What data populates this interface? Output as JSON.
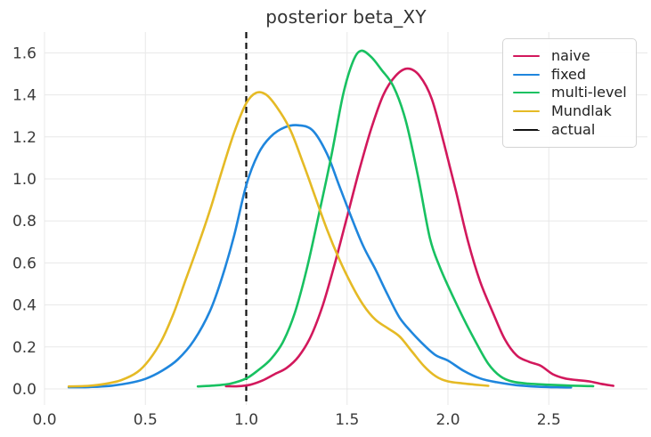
{
  "title": "posterior beta_XY",
  "legend": {
    "position": "upper right",
    "entries": [
      {
        "label": "naive",
        "color": "#d2185c",
        "dash": false
      },
      {
        "label": "fixed",
        "color": "#1f86dd",
        "dash": false
      },
      {
        "label": "multi-level",
        "color": "#18c161",
        "dash": false
      },
      {
        "label": "Mundlak",
        "color": "#e5ba25",
        "dash": false
      },
      {
        "label": "actual",
        "color": "#111111",
        "dash": true
      }
    ]
  },
  "colors": {
    "grid": "#e8e8e8",
    "tick_text": "#3a3a3a",
    "title_text": "#333333"
  },
  "chart_data": {
    "type": "line",
    "title": "posterior beta_XY",
    "xlabel": "",
    "ylabel": "",
    "grid": true,
    "legend_position": "upper right",
    "xlim": [
      -0.01,
      2.99
    ],
    "ylim": [
      -0.077,
      1.7
    ],
    "x_ticks": [
      0.0,
      0.5,
      1.0,
      1.5,
      2.0,
      2.5
    ],
    "x_tick_labels": [
      "0.0",
      "0.5",
      "1.0",
      "1.5",
      "2.0",
      "2.5"
    ],
    "y_ticks": [
      0.0,
      0.2,
      0.4,
      0.6,
      0.8,
      1.0,
      1.2,
      1.4,
      1.6
    ],
    "y_tick_labels": [
      "0.0",
      "0.2",
      "0.4",
      "0.6",
      "0.8",
      "1.0",
      "1.2",
      "1.4",
      "1.6"
    ],
    "vline": {
      "x": 1.0,
      "label": "actual",
      "style": "dashed",
      "color": "#111111"
    },
    "series": [
      {
        "name": "naive",
        "color": "#d2185c",
        "peak": {
          "x": 1.8,
          "y": 1.52
        },
        "points": [
          [
            0.9,
            0.013
          ],
          [
            0.96,
            0.013
          ],
          [
            1.02,
            0.02
          ],
          [
            1.08,
            0.04
          ],
          [
            1.14,
            0.07
          ],
          [
            1.2,
            0.1
          ],
          [
            1.26,
            0.155
          ],
          [
            1.32,
            0.25
          ],
          [
            1.38,
            0.4
          ],
          [
            1.44,
            0.6
          ],
          [
            1.5,
            0.82
          ],
          [
            1.56,
            1.04
          ],
          [
            1.62,
            1.24
          ],
          [
            1.68,
            1.4
          ],
          [
            1.74,
            1.49
          ],
          [
            1.8,
            1.525
          ],
          [
            1.86,
            1.49
          ],
          [
            1.92,
            1.38
          ],
          [
            1.98,
            1.17
          ],
          [
            2.04,
            0.94
          ],
          [
            2.1,
            0.7
          ],
          [
            2.16,
            0.51
          ],
          [
            2.22,
            0.37
          ],
          [
            2.28,
            0.24
          ],
          [
            2.34,
            0.16
          ],
          [
            2.4,
            0.13
          ],
          [
            2.46,
            0.11
          ],
          [
            2.52,
            0.07
          ],
          [
            2.58,
            0.05
          ],
          [
            2.64,
            0.042
          ],
          [
            2.7,
            0.036
          ],
          [
            2.76,
            0.024
          ],
          [
            2.82,
            0.015
          ]
        ]
      },
      {
        "name": "fixed",
        "color": "#1f86dd",
        "peak": {
          "x": 1.26,
          "y": 1.25
        },
        "points": [
          [
            0.12,
            0.008
          ],
          [
            0.22,
            0.009
          ],
          [
            0.32,
            0.014
          ],
          [
            0.42,
            0.028
          ],
          [
            0.5,
            0.048
          ],
          [
            0.58,
            0.085
          ],
          [
            0.66,
            0.14
          ],
          [
            0.74,
            0.23
          ],
          [
            0.82,
            0.37
          ],
          [
            0.88,
            0.53
          ],
          [
            0.94,
            0.73
          ],
          [
            1.0,
            0.97
          ],
          [
            1.06,
            1.12
          ],
          [
            1.12,
            1.2
          ],
          [
            1.19,
            1.245
          ],
          [
            1.26,
            1.255
          ],
          [
            1.33,
            1.23
          ],
          [
            1.4,
            1.12
          ],
          [
            1.46,
            0.97
          ],
          [
            1.52,
            0.82
          ],
          [
            1.58,
            0.68
          ],
          [
            1.64,
            0.57
          ],
          [
            1.7,
            0.45
          ],
          [
            1.76,
            0.34
          ],
          [
            1.82,
            0.27
          ],
          [
            1.88,
            0.21
          ],
          [
            1.94,
            0.16
          ],
          [
            2.0,
            0.135
          ],
          [
            2.08,
            0.085
          ],
          [
            2.16,
            0.05
          ],
          [
            2.24,
            0.032
          ],
          [
            2.34,
            0.018
          ],
          [
            2.44,
            0.011
          ],
          [
            2.54,
            0.008
          ],
          [
            2.61,
            0.007
          ]
        ]
      },
      {
        "name": "multi-level",
        "color": "#18c161",
        "peak": {
          "x": 1.57,
          "y": 1.61
        },
        "points": [
          [
            0.76,
            0.012
          ],
          [
            0.84,
            0.016
          ],
          [
            0.92,
            0.025
          ],
          [
            1.0,
            0.05
          ],
          [
            1.06,
            0.09
          ],
          [
            1.12,
            0.14
          ],
          [
            1.18,
            0.22
          ],
          [
            1.24,
            0.36
          ],
          [
            1.3,
            0.57
          ],
          [
            1.36,
            0.83
          ],
          [
            1.42,
            1.1
          ],
          [
            1.48,
            1.4
          ],
          [
            1.53,
            1.56
          ],
          [
            1.57,
            1.61
          ],
          [
            1.62,
            1.58
          ],
          [
            1.67,
            1.52
          ],
          [
            1.73,
            1.44
          ],
          [
            1.79,
            1.28
          ],
          [
            1.85,
            1.02
          ],
          [
            1.91,
            0.72
          ],
          [
            1.96,
            0.58
          ],
          [
            2.02,
            0.45
          ],
          [
            2.08,
            0.33
          ],
          [
            2.14,
            0.22
          ],
          [
            2.2,
            0.12
          ],
          [
            2.26,
            0.06
          ],
          [
            2.32,
            0.035
          ],
          [
            2.4,
            0.025
          ],
          [
            2.5,
            0.02
          ],
          [
            2.6,
            0.016
          ],
          [
            2.72,
            0.013
          ]
        ]
      },
      {
        "name": "Mundlak",
        "color": "#e5ba25",
        "peak": {
          "x": 1.05,
          "y": 1.41
        },
        "points": [
          [
            0.12,
            0.012
          ],
          [
            0.22,
            0.015
          ],
          [
            0.3,
            0.024
          ],
          [
            0.38,
            0.042
          ],
          [
            0.46,
            0.08
          ],
          [
            0.52,
            0.14
          ],
          [
            0.58,
            0.23
          ],
          [
            0.64,
            0.36
          ],
          [
            0.7,
            0.52
          ],
          [
            0.76,
            0.68
          ],
          [
            0.82,
            0.85
          ],
          [
            0.88,
            1.04
          ],
          [
            0.94,
            1.22
          ],
          [
            1.0,
            1.36
          ],
          [
            1.05,
            1.41
          ],
          [
            1.1,
            1.4
          ],
          [
            1.16,
            1.33
          ],
          [
            1.22,
            1.23
          ],
          [
            1.28,
            1.08
          ],
          [
            1.34,
            0.92
          ],
          [
            1.4,
            0.76
          ],
          [
            1.46,
            0.62
          ],
          [
            1.52,
            0.5
          ],
          [
            1.58,
            0.4
          ],
          [
            1.64,
            0.33
          ],
          [
            1.7,
            0.29
          ],
          [
            1.76,
            0.25
          ],
          [
            1.82,
            0.18
          ],
          [
            1.88,
            0.11
          ],
          [
            1.94,
            0.06
          ],
          [
            2.0,
            0.036
          ],
          [
            2.08,
            0.026
          ],
          [
            2.14,
            0.02
          ],
          [
            2.2,
            0.015
          ]
        ]
      }
    ]
  }
}
